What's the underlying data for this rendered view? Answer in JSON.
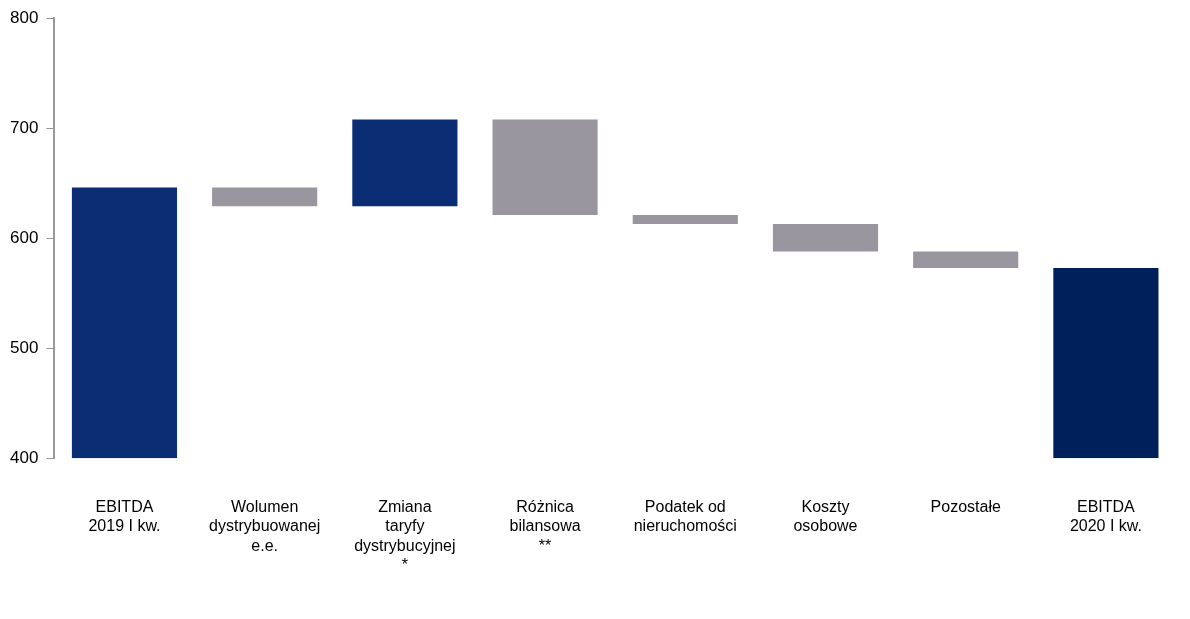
{
  "chart_data": {
    "type": "bar",
    "categories": [
      "EBITDA\n2019 I kw.",
      "Wolumen\ndystrybuowanej\ne.e.",
      "Zmiana\ntaryfy\ndystrybucyjnej\n*",
      "Różnica\nbilansowa\n**",
      "Podatek od\nnieruchomości",
      "Koszty\nosobowe",
      "Pozostałe",
      "EBITDA\n2020 I kw."
    ],
    "values": [
      246,
      -17,
      79,
      -87,
      -8,
      -25,
      -15,
      173
    ],
    "base": [
      400,
      646,
      629,
      708,
      621,
      613,
      588,
      400
    ],
    "colors": [
      "#0a2d73",
      "#9a969f",
      "#0a2d73",
      "#9a969f",
      "#9a969f",
      "#9a969f",
      "#9a969f",
      "#00205b"
    ],
    "ylim": [
      400,
      800
    ],
    "yticks": [
      400,
      500,
      600,
      700,
      800
    ],
    "grid": false,
    "legend": false
  }
}
